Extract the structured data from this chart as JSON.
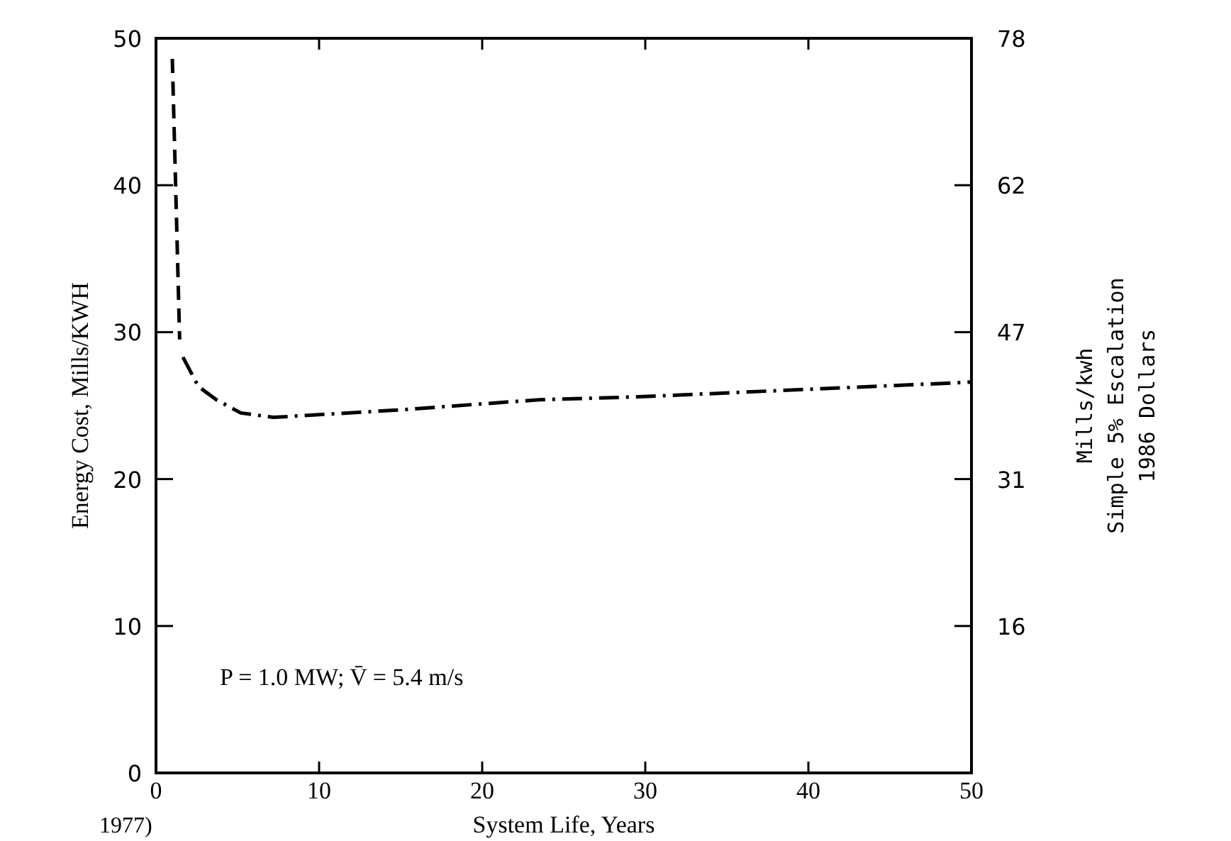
{
  "chart_data": {
    "type": "line",
    "xlabel": "System Life, Years",
    "ylabel": "Energy Cost, Mills/KWH",
    "y2label": "Mills/kwh\nSimple 5% Escalation\n1986 Dollars",
    "xlim": [
      0,
      50
    ],
    "xticks": [
      0,
      10,
      20,
      30,
      40,
      50
    ],
    "ylim": [
      0,
      50
    ],
    "yticks": [
      0,
      10,
      20,
      30,
      40,
      50
    ],
    "y2lim": [
      0,
      78
    ],
    "y2ticks": [
      {
        "value": 15.6,
        "label": "16"
      },
      {
        "value": 31.2,
        "label": "31"
      },
      {
        "value": 46.8,
        "label": "47"
      },
      {
        "value": 62.4,
        "label": "62"
      },
      {
        "value": 78,
        "label": "78"
      }
    ],
    "series": [
      {
        "color": "#000000",
        "line_style": "dashed",
        "x": [
          1.0,
          1.45
        ],
        "values": [
          48.6,
          29.5
        ]
      },
      {
        "color": "#000000",
        "line_style": "dashdot",
        "x": [
          1.65,
          2.6,
          3.7,
          5.2,
          7.2,
          14.8,
          23.5,
          29.6,
          50
        ],
        "values": [
          28.3,
          26.3,
          25.4,
          24.5,
          24.2,
          24.7,
          25.4,
          25.6,
          26.6
        ]
      }
    ],
    "annotations": [
      "P = 1.0 MW; V̄ = 5.4 m/s",
      "1977)"
    ],
    "grid": false,
    "marker": "none"
  }
}
